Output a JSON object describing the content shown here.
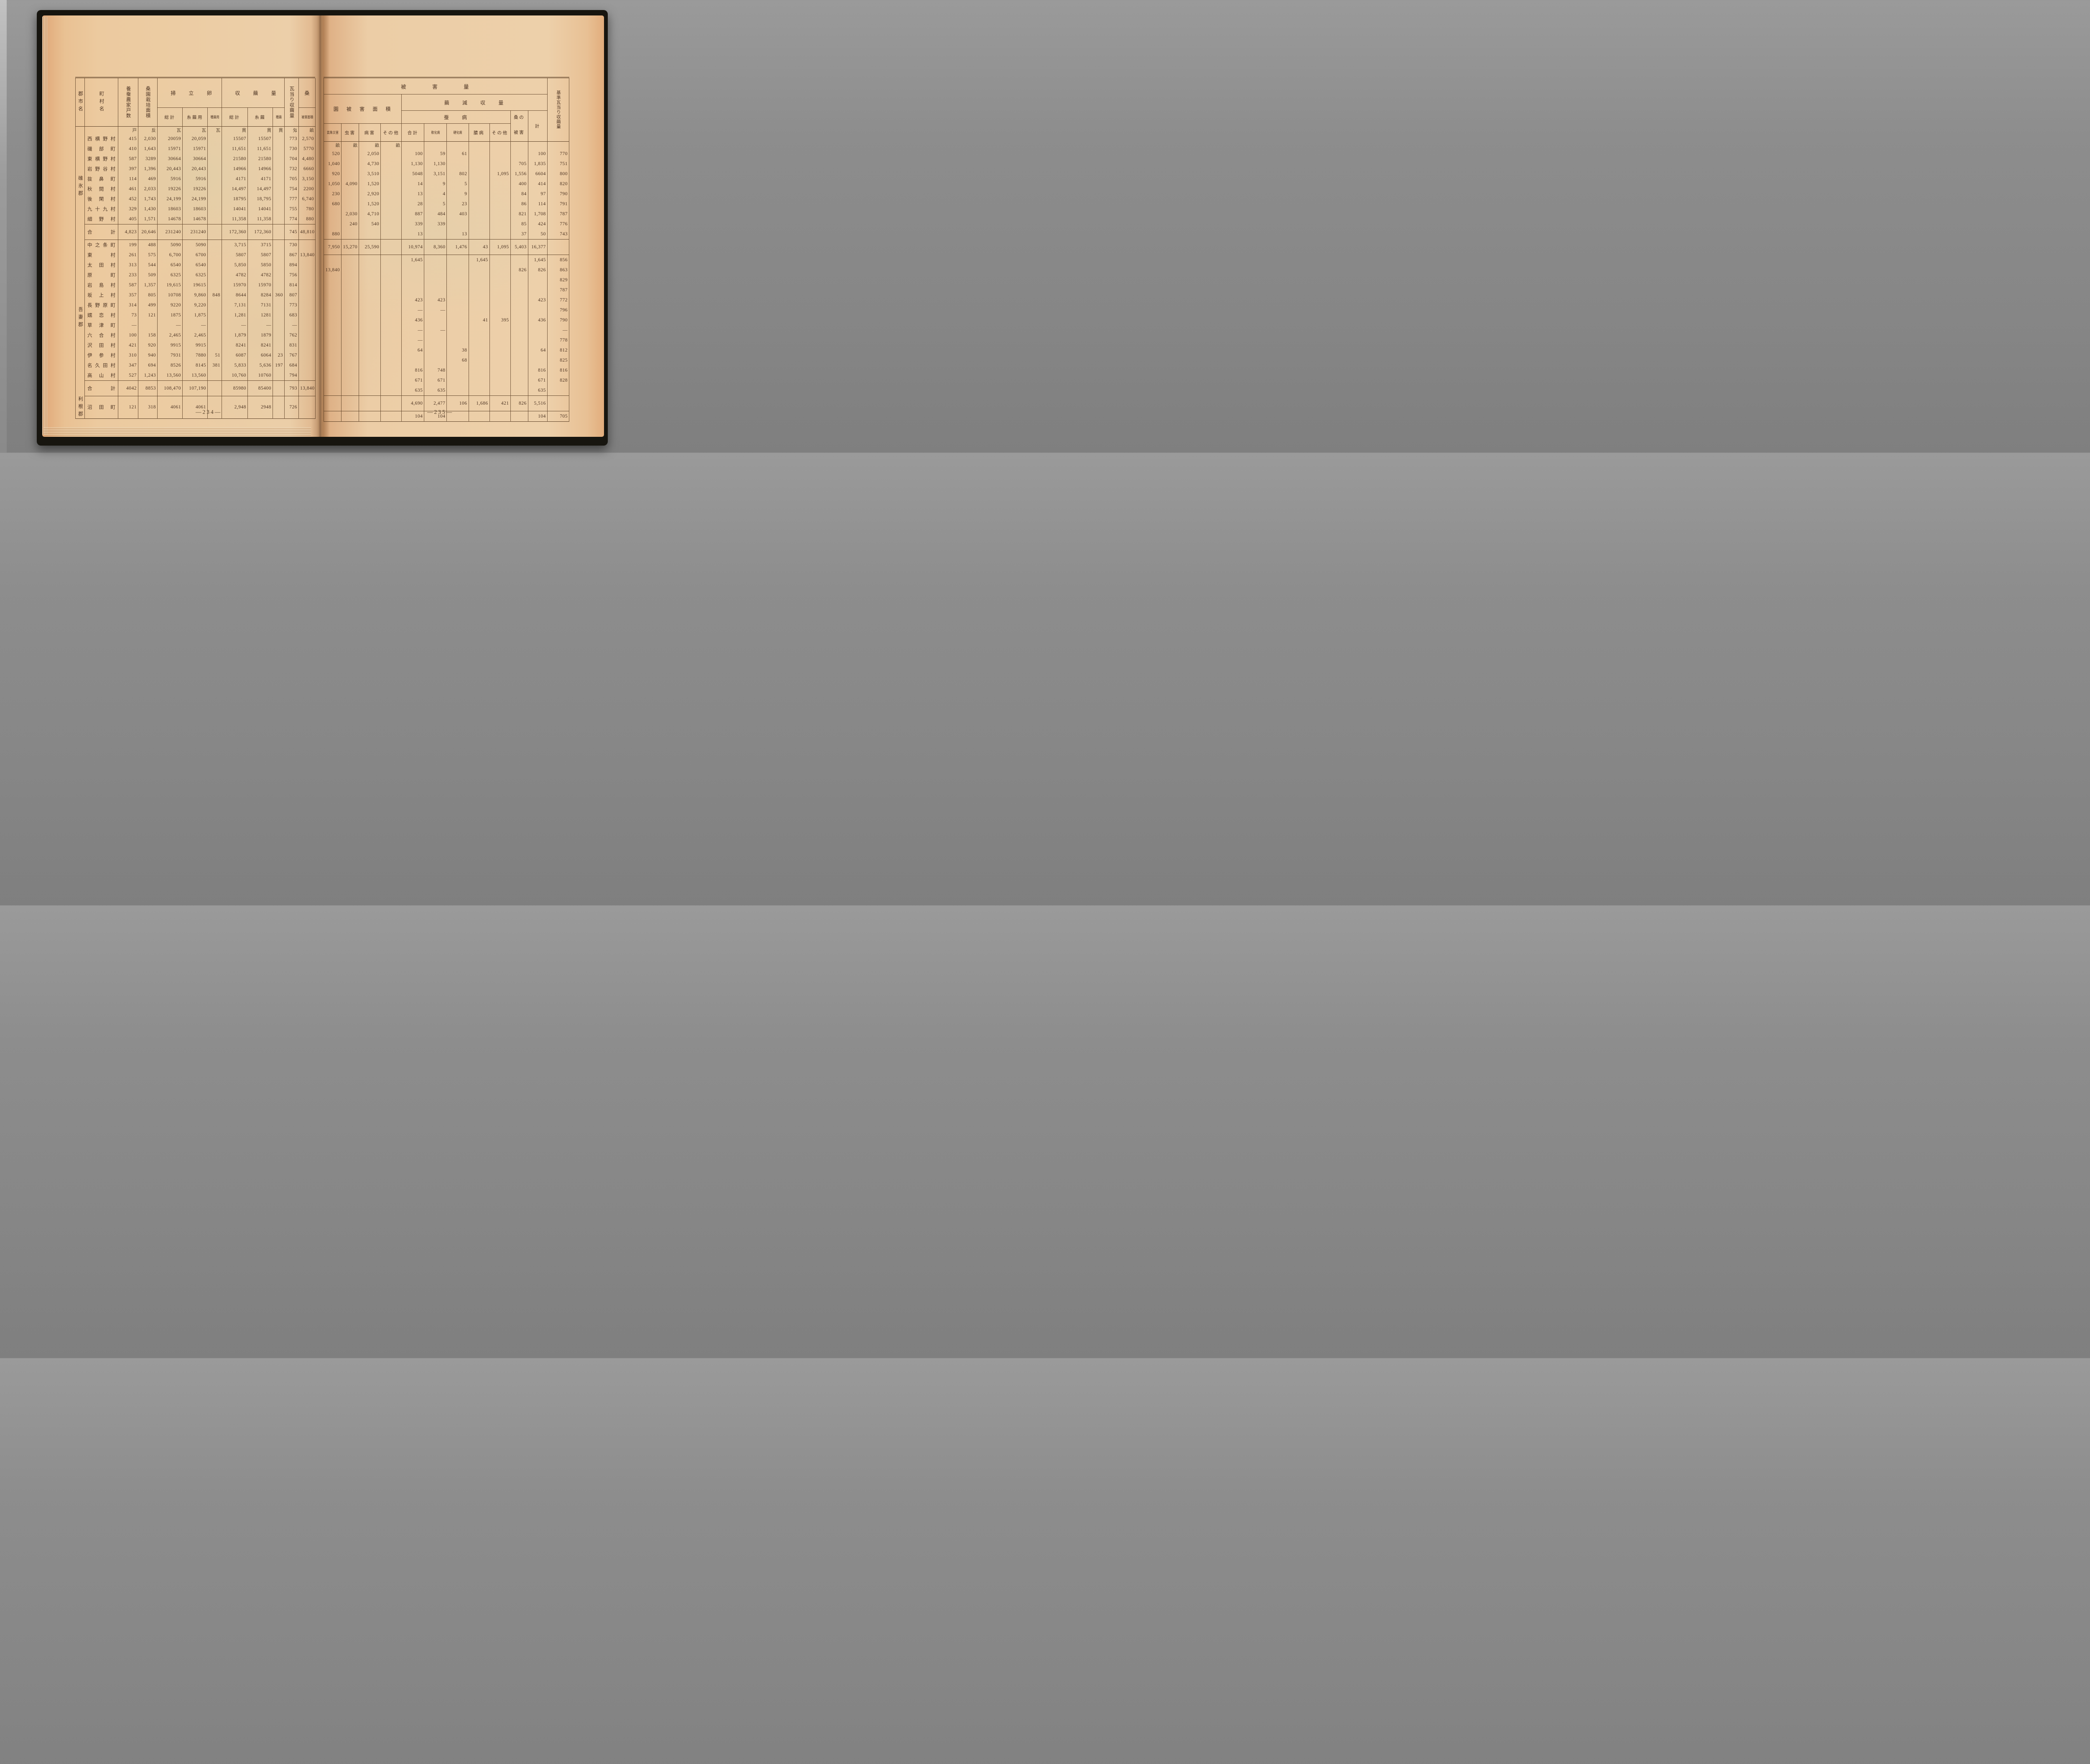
{
  "page_numbers": {
    "left": "—234—",
    "right": "—235—"
  },
  "left_table": {
    "headers": {
      "district": "郡市名",
      "town": "町村名",
      "households": "養蚕農家戸数",
      "mulberry_area": "桑園栽培面積",
      "eggs_group": "掃立卵量",
      "eggs_total": "総計",
      "eggs_silk": "糸繭用",
      "eggs_seed": "種繭用",
      "cocoon_group": "収繭量",
      "cocoon_total": "総計",
      "cocoon_silk": "糸繭",
      "cocoon_seed": "種繭",
      "per_gram": "瓦当り収繭量",
      "mulberry": "桑",
      "mulberry_damage": "被害面積"
    },
    "units": [
      "",
      "",
      "戸",
      "反",
      "瓦",
      "瓦",
      "瓦",
      "貫",
      "貫",
      "貫",
      "匁",
      "畝"
    ],
    "sections": [
      {
        "district": "碓氷郡",
        "rows": [
          {
            "town": "西横野村",
            "cells": [
              "415",
              "2,030",
              "20059",
              "20,059",
              "",
              "15507",
              "15507",
              "",
              "773",
              "2,570"
            ]
          },
          {
            "town": "磯部町",
            "cells": [
              "410",
              "1,643",
              "15971",
              "15971",
              "",
              "11,651",
              "11,651",
              "",
              "730",
              "5770"
            ]
          },
          {
            "town": "東横野村",
            "cells": [
              "587",
              "3289",
              "30664",
              "30664",
              "",
              "21580",
              "21580",
              "",
              "704",
              "4,480"
            ]
          },
          {
            "town": "岩野谷村",
            "cells": [
              "397",
              "1,396",
              "20,443",
              "20,443",
              "",
              "14966",
              "14966",
              "",
              "732",
              "6660"
            ]
          },
          {
            "town": "抜鼻町",
            "cells": [
              "114",
              "469",
              "5916",
              "5916",
              "",
              "4171",
              "4171",
              "",
              "705",
              "3,150"
            ]
          },
          {
            "town": "秋間村",
            "cells": [
              "461",
              "2,033",
              "19226",
              "19226",
              "",
              "14,497",
              "14,497",
              "",
              "754",
              "2200"
            ]
          },
          {
            "town": "後閑村",
            "cells": [
              "452",
              "1,743",
              "24,199",
              "24,199",
              "",
              "18795",
              "18,795",
              "",
              "777",
              "6,740"
            ]
          },
          {
            "town": "九十九村",
            "cells": [
              "329",
              "1,430",
              "18603",
              "18603",
              "",
              "14041",
              "14041",
              "",
              "755",
              "780"
            ]
          },
          {
            "town": "細野村",
            "cells": [
              "405",
              "1,571",
              "14678",
              "14678",
              "",
              "11,358",
              "11,358",
              "",
              "774",
              "880"
            ]
          },
          {
            "town": "合計",
            "type": "sum",
            "cells": [
              "4,823",
              "20,646",
              "231240",
              "231240",
              "",
              "172,360",
              "172,360",
              "",
              "745",
              "48,810"
            ]
          }
        ]
      },
      {
        "district": "吾妻郡",
        "rows": [
          {
            "town": "中之条町",
            "cells": [
              "199",
              "488",
              "5090",
              "5090",
              "",
              "3,715",
              "3715",
              "",
              "730",
              ""
            ]
          },
          {
            "town": "東村",
            "cells": [
              "261",
              "575",
              "6,700",
              "6700",
              "",
              "5807",
              "5807",
              "",
              "867",
              "13,840"
            ]
          },
          {
            "town": "太田村",
            "cells": [
              "313",
              "544",
              "6540",
              "6540",
              "",
              "5,850",
              "5850",
              "",
              "894",
              ""
            ]
          },
          {
            "town": "原町",
            "cells": [
              "233",
              "509",
              "6325",
              "6325",
              "",
              "4782",
              "4782",
              "",
              "756",
              ""
            ]
          },
          {
            "town": "岩島村",
            "cells": [
              "587",
              "1,357",
              "19,615",
              "19615",
              "",
              "15970",
              "15970",
              "",
              "814",
              ""
            ]
          },
          {
            "town": "坂上村",
            "cells": [
              "357",
              "805",
              "10708",
              "9,860",
              "848",
              "8644",
              "8284",
              "360",
              "807",
              ""
            ]
          },
          {
            "town": "長野原町",
            "cells": [
              "314",
              "499",
              "9220",
              "9,220",
              "",
              "7,131",
              "7131",
              "",
              "773",
              ""
            ]
          },
          {
            "town": "嬬恋村",
            "cells": [
              "73",
              "121",
              "1875",
              "1,875",
              "",
              "1,281",
              "1281",
              "",
              "683",
              ""
            ]
          },
          {
            "town": "草津町",
            "cells": [
              "—",
              "",
              "—",
              "—",
              "",
              "—",
              "—",
              "",
              "—",
              ""
            ]
          },
          {
            "town": "六合村",
            "cells": [
              "100",
              "158",
              "2,465",
              "2,465",
              "",
              "1,879",
              "1879",
              "",
              "762",
              ""
            ]
          },
          {
            "town": "沢田村",
            "cells": [
              "421",
              "920",
              "9915",
              "9915",
              "",
              "8241",
              "8241",
              "",
              "831",
              ""
            ]
          },
          {
            "town": "伊参村",
            "cells": [
              "310",
              "940",
              "7931",
              "7880",
              "51",
              "6087",
              "6064",
              "23",
              "767",
              ""
            ]
          },
          {
            "town": "名久田村",
            "cells": [
              "347",
              "694",
              "8526",
              "8145",
              "381",
              "5,833",
              "5,636",
              "197",
              "684",
              ""
            ]
          },
          {
            "town": "高山村",
            "cells": [
              "527",
              "1,243",
              "13,560",
              "13,560",
              "",
              "10,760",
              "10760",
              "",
              "794",
              ""
            ]
          },
          {
            "town": "合計",
            "type": "sum",
            "cells": [
              "4042",
              "8853",
              "108,470",
              "107,190",
              "",
              "85980",
              "85400",
              "",
              "793",
              "13,840"
            ]
          }
        ]
      },
      {
        "district": "利根郡",
        "rows": [
          {
            "town": "沼田町",
            "cells": [
              "121",
              "318",
              "4061",
              "4061",
              "",
              "2,948",
              "2948",
              "",
              "726",
              ""
            ]
          }
        ]
      }
    ]
  },
  "right_table": {
    "headers": {
      "damage_band": "被害量",
      "field_group": "園被害面積",
      "weather": "氣象災害",
      "insect": "虫害",
      "disease": "病害",
      "other1": "その他",
      "reduction_group": "繭減収量",
      "silkworm_group": "蚕病",
      "total": "合計",
      "soft_disease": "軟化病",
      "hard_disease": "硬化病",
      "grasserie": "膿病",
      "other2": "その他",
      "mulberry_top": "桑の",
      "mulberry_bottom": "被害",
      "sum": "計",
      "standard": "基準瓦当り収繭量"
    },
    "units": [
      "畝",
      "畝",
      "畝",
      "畝",
      "",
      "",
      "",
      "",
      "",
      "",
      "",
      ""
    ],
    "sections": [
      {
        "rows": [
          {
            "cells": [
              "520",
              "",
              "2,050",
              "",
              "100",
              "59",
              "61",
              "",
              "",
              "",
              "100",
              "770"
            ]
          },
          {
            "cells": [
              "1,040",
              "",
              "4,730",
              "",
              "1,130",
              "1,130",
              "",
              "",
              "",
              "705",
              "1,835",
              "751"
            ]
          },
          {
            "cells": [
              "920",
              "",
              "3,510",
              "",
              "5048",
              "3,151",
              "802",
              "",
              "1,095",
              "1,556",
              "6604",
              "800"
            ]
          },
          {
            "cells": [
              "1,050",
              "4,090",
              "1,520",
              "",
              "14",
              "9",
              "5",
              "",
              "",
              "400",
              "414",
              "820"
            ]
          },
          {
            "cells": [
              "230",
              "",
              "2,920",
              "",
              "13",
              "4",
              "9",
              "",
              "",
              "84",
              "97",
              "790"
            ]
          },
          {
            "cells": [
              "680",
              "",
              "1,520",
              "",
              "28",
              "5",
              "23",
              "",
              "",
              "86",
              "114",
              "791"
            ]
          },
          {
            "cells": [
              "",
              "2,030",
              "4,710",
              "",
              "887",
              "484",
              "403",
              "",
              "",
              "821",
              "1,708",
              "787"
            ]
          },
          {
            "cells": [
              "",
              "240",
              "540",
              "",
              "339",
              "339",
              "",
              "",
              "",
              "85",
              "424",
              "776"
            ]
          },
          {
            "cells": [
              "880",
              "",
              "",
              "",
              "13",
              "",
              "13",
              "",
              "",
              "37",
              "50",
              "743"
            ]
          },
          {
            "type": "sum",
            "cells": [
              "7,950",
              "15,270",
              "25,590",
              "",
              "10,974",
              "8,360",
              "1,476",
              "43",
              "1,095",
              "5,403",
              "16,377",
              ""
            ]
          }
        ]
      },
      {
        "rows": [
          {
            "cells": [
              "",
              "",
              "",
              "",
              "1,645",
              "",
              "",
              "1,645",
              "",
              "",
              "1,645",
              "856"
            ]
          },
          {
            "cells": [
              "13,840",
              "",
              "",
              "",
              "",
              "",
              "",
              "",
              "",
              "826",
              "826",
              "863"
            ]
          },
          {
            "cells": [
              "",
              "",
              "",
              "",
              "",
              "",
              "",
              "",
              "",
              "",
              "",
              "829"
            ]
          },
          {
            "cells": [
              "",
              "",
              "",
              "",
              "",
              "",
              "",
              "",
              "",
              "",
              "",
              "787"
            ]
          },
          {
            "cells": [
              "",
              "",
              "",
              "",
              "423",
              "423",
              "",
              "",
              "",
              "",
              "423",
              "772"
            ]
          },
          {
            "cells": [
              "",
              "",
              "",
              "",
              "—",
              "—",
              "",
              "",
              "",
              "",
              "",
              "796"
            ]
          },
          {
            "cells": [
              "",
              "",
              "",
              "",
              "436",
              "",
              "",
              "41",
              "395",
              "",
              "436",
              "790"
            ]
          },
          {
            "cells": [
              "",
              "",
              "",
              "",
              "—",
              "—",
              "",
              "",
              "",
              "",
              "",
              "—"
            ]
          },
          {
            "cells": [
              "",
              "",
              "",
              "",
              "—",
              "",
              "",
              "",
              "",
              "",
              "",
              "778"
            ]
          },
          {
            "cells": [
              "",
              "",
              "",
              "",
              "64",
              "",
              "38",
              "",
              "",
              "",
              "64",
              "812"
            ]
          },
          {
            "cells": [
              "",
              "",
              "",
              "",
              "",
              "",
              "68",
              "",
              "",
              "",
              "",
              "825"
            ]
          },
          {
            "cells": [
              "",
              "",
              "",
              "",
              "816",
              "748",
              "",
              "",
              "",
              "",
              "816",
              "816"
            ]
          },
          {
            "cells": [
              "",
              "",
              "",
              "",
              "671",
              "671",
              "",
              "",
              "",
              "",
              "671",
              "828"
            ]
          },
          {
            "cells": [
              "",
              "",
              "",
              "",
              "635",
              "635",
              "",
              "",
              "",
              "",
              "635",
              ""
            ]
          },
          {
            "type": "sum",
            "cells": [
              "",
              "",
              "",
              "",
              "4,690",
              "2,477",
              "106",
              "1,686",
              "421",
              "826",
              "5,516",
              ""
            ]
          }
        ]
      },
      {
        "rows": [
          {
            "cells": [
              "",
              "",
              "",
              "",
              "104",
              "104",
              "",
              "",
              "",
              "",
              "104",
              "705"
            ]
          }
        ]
      }
    ]
  }
}
